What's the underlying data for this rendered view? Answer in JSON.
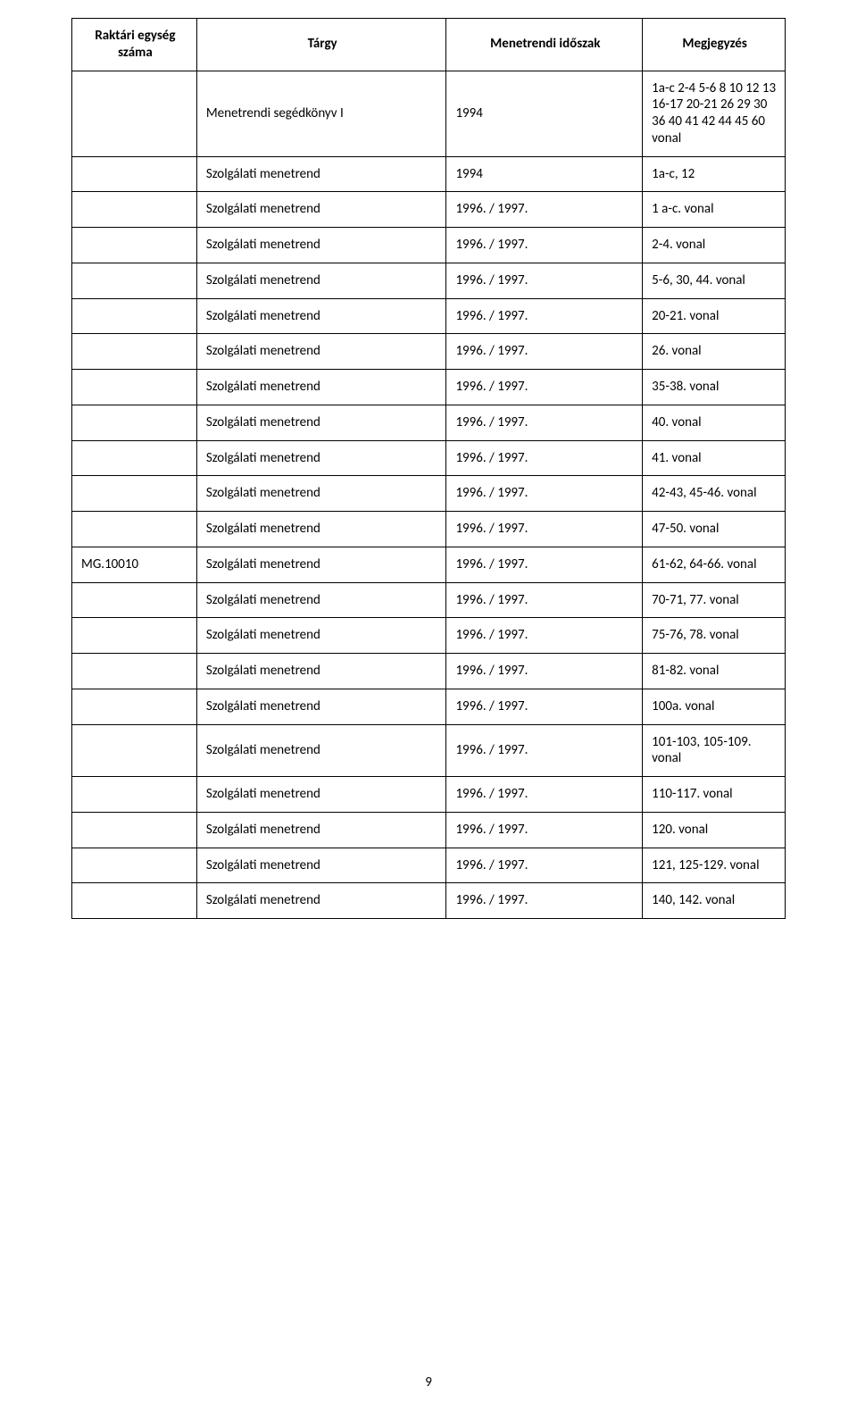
{
  "headers": {
    "c1": "Raktári egység száma",
    "c2": "Tárgy",
    "c3": "Menetrendi időszak",
    "c4": "Megjegyzés"
  },
  "rows": [
    {
      "c1": "",
      "c2": "Menetrendi segédkönyv I",
      "c3": "1994",
      "c4": "1a-c 2-4 5-6 8 10 12 13 16-17 20-21 26 29 30 36 40 41 42 44 45 60 vonal"
    },
    {
      "c1": "",
      "c2": "Szolgálati menetrend",
      "c3": "1994",
      "c4": "1a-c, 12"
    },
    {
      "c1": "",
      "c2": "Szolgálati menetrend",
      "c3": "1996. / 1997.",
      "c4": "1 a-c. vonal"
    },
    {
      "c1": "",
      "c2": "Szolgálati menetrend",
      "c3": "1996. / 1997.",
      "c4": "2-4. vonal"
    },
    {
      "c1": "",
      "c2": "Szolgálati menetrend",
      "c3": "1996. / 1997.",
      "c4": "5-6, 30, 44. vonal"
    },
    {
      "c1": "",
      "c2": "Szolgálati menetrend",
      "c3": "1996. / 1997.",
      "c4": "20-21. vonal"
    },
    {
      "c1": "",
      "c2": "Szolgálati menetrend",
      "c3": "1996. / 1997.",
      "c4": "26. vonal"
    },
    {
      "c1": "",
      "c2": "Szolgálati menetrend",
      "c3": "1996. / 1997.",
      "c4": "35-38. vonal"
    },
    {
      "c1": "",
      "c2": "Szolgálati menetrend",
      "c3": "1996. / 1997.",
      "c4": "40. vonal"
    },
    {
      "c1": "",
      "c2": "Szolgálati menetrend",
      "c3": "1996. / 1997.",
      "c4": "41. vonal"
    },
    {
      "c1": "",
      "c2": "Szolgálati menetrend",
      "c3": "1996. / 1997.",
      "c4": "42-43, 45-46. vonal"
    },
    {
      "c1": "",
      "c2": "Szolgálati menetrend",
      "c3": "1996. / 1997.",
      "c4": "47-50. vonal"
    },
    {
      "c1": "MG.10010",
      "c2": "Szolgálati menetrend",
      "c3": "1996. / 1997.",
      "c4": "61-62, 64-66. vonal"
    },
    {
      "c1": "",
      "c2": "Szolgálati menetrend",
      "c3": "1996. / 1997.",
      "c4": "70-71, 77. vonal"
    },
    {
      "c1": "",
      "c2": "Szolgálati menetrend",
      "c3": "1996. / 1997.",
      "c4": "75-76, 78. vonal"
    },
    {
      "c1": "",
      "c2": "Szolgálati menetrend",
      "c3": "1996. / 1997.",
      "c4": "81-82. vonal"
    },
    {
      "c1": "",
      "c2": "Szolgálati menetrend",
      "c3": "1996. / 1997.",
      "c4": "100a. vonal"
    },
    {
      "c1": "",
      "c2": "Szolgálati menetrend",
      "c3": "1996. / 1997.",
      "c4": "101-103, 105-109. vonal"
    },
    {
      "c1": "",
      "c2": "Szolgálati menetrend",
      "c3": "1996. / 1997.",
      "c4": "110-117. vonal"
    },
    {
      "c1": "",
      "c2": "Szolgálati menetrend",
      "c3": "1996. / 1997.",
      "c4": "120. vonal"
    },
    {
      "c1": "",
      "c2": "Szolgálati menetrend",
      "c3": "1996. / 1997.",
      "c4": "121, 125-129. vonal"
    },
    {
      "c1": "",
      "c2": "Szolgálati menetrend",
      "c3": "1996. / 1997.",
      "c4": "140, 142. vonal"
    }
  ],
  "page_number": "9",
  "style": {
    "font_family": "Calibri, 'Segoe UI', Arial, sans-serif",
    "font_size_pt": 11,
    "border_color": "#000000",
    "background_color": "#ffffff",
    "text_color": "#000000"
  }
}
